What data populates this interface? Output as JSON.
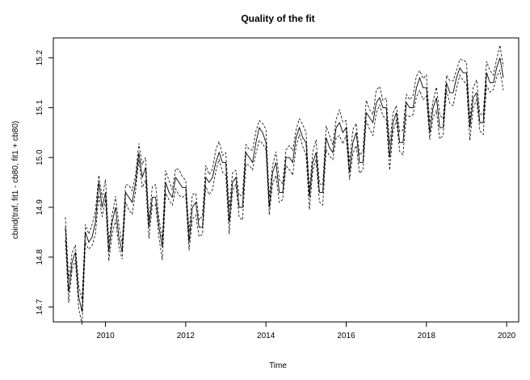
{
  "chart_data": {
    "type": "line",
    "title": "Quality of the fit",
    "xlabel": "Time",
    "ylabel": "cbind(traf, fit1 - cb80, fit1 + cb80)",
    "xlim": [
      2008.7,
      2020.3
    ],
    "ylim": [
      14.67,
      15.24
    ],
    "x_ticks": [
      2010,
      2012,
      2014,
      2016,
      2018,
      2020
    ],
    "y_ticks": [
      14.7,
      14.8,
      14.9,
      15.0,
      15.1,
      15.2
    ],
    "y_tick_labels": [
      "14.7",
      "14.8",
      "14.9",
      "15.0",
      "15.1",
      "15.2"
    ],
    "frequency": 12,
    "start": 2009.0,
    "band_half_width": 0.02,
    "grid": false,
    "legend": "none",
    "series": [
      {
        "values": [
          14.86,
          14.73,
          14.79,
          14.81,
          14.72,
          14.69,
          14.85,
          14.83,
          14.84,
          14.87,
          14.95,
          14.9,
          14.93,
          14.81,
          14.87,
          14.9,
          14.84,
          14.81,
          14.93,
          14.92,
          14.91,
          14.95,
          15.01,
          14.96,
          14.98,
          14.86,
          14.92,
          14.92,
          14.86,
          14.82,
          14.95,
          14.93,
          14.92,
          14.96,
          14.95,
          14.94,
          14.94,
          14.83,
          14.9,
          14.91,
          14.86,
          14.86,
          14.96,
          14.95,
          14.96,
          14.99,
          15.01,
          14.99,
          14.99,
          14.87,
          14.95,
          14.96,
          14.9,
          14.9,
          15.01,
          15.0,
          14.99,
          15.03,
          15.06,
          15.05,
          15.03,
          14.9,
          14.97,
          14.99,
          14.93,
          14.93,
          15.0,
          15.0,
          14.99,
          15.04,
          15.06,
          15.04,
          15.03,
          14.92,
          14.99,
          15.01,
          14.93,
          14.93,
          15.04,
          15.02,
          15.01,
          15.06,
          15.07,
          15.05,
          15.06,
          14.97,
          15.03,
          15.05,
          14.99,
          14.99,
          15.09,
          15.08,
          15.07,
          15.11,
          15.12,
          15.1,
          15.1,
          15.0,
          15.07,
          15.09,
          15.03,
          15.03,
          15.11,
          15.1,
          15.1,
          15.14,
          15.16,
          15.14,
          15.14,
          15.05,
          15.1,
          15.12,
          15.06,
          15.06,
          15.15,
          15.13,
          15.13,
          15.16,
          15.18,
          15.17,
          15.17,
          15.06,
          15.12,
          15.13,
          15.07,
          15.07,
          15.17,
          15.15,
          15.15,
          15.18,
          15.2,
          15.16
        ]
      }
    ]
  }
}
